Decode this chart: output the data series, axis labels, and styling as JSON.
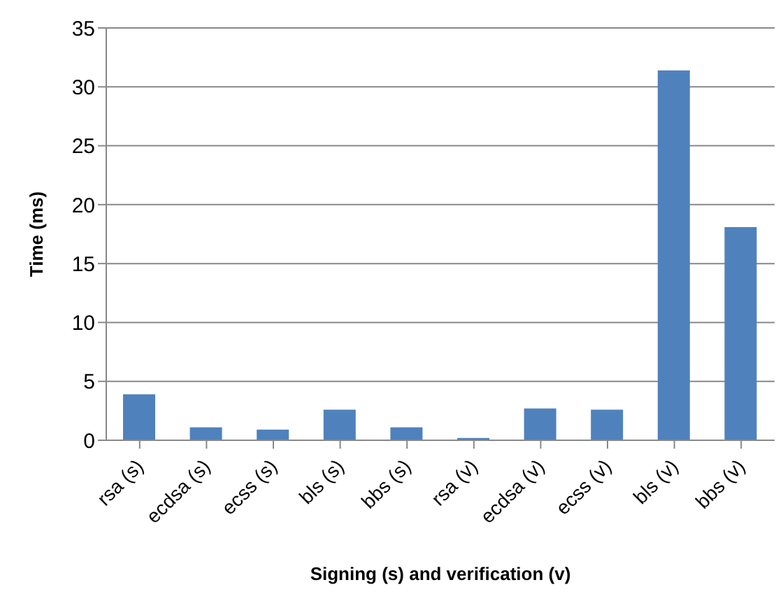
{
  "chart_data": {
    "type": "bar",
    "xlabel": "Signing (s) and verification (v)",
    "ylabel": "Time (ms)",
    "categories": [
      "rsa (s)",
      "ecdsa (s)",
      "ecss (s)",
      "bls (s)",
      "bbs (s)",
      "rsa (v)",
      "ecdsa (v)",
      "ecss (v)",
      "bls (v)",
      "bbs (v)"
    ],
    "values": [
      3.9,
      1.1,
      0.9,
      2.6,
      1.1,
      0.2,
      2.7,
      2.6,
      31.4,
      18.1
    ],
    "color": "#4f81bd",
    "ylim": [
      0,
      35
    ],
    "yticks": [
      0,
      5,
      10,
      15,
      20,
      25,
      30,
      35
    ],
    "grid": "y"
  }
}
